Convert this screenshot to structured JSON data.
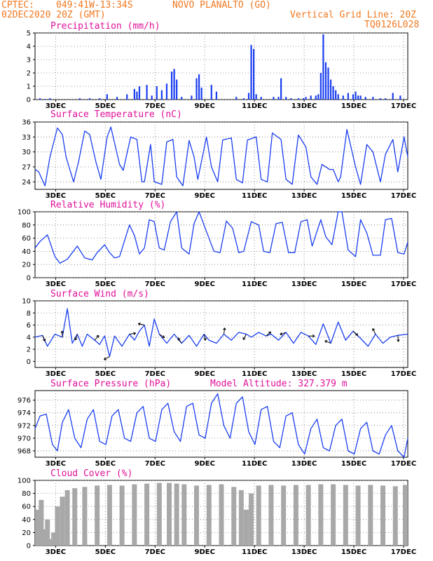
{
  "header": {
    "source": "CPTEC:",
    "location_coords": "049:41W-13:34S",
    "location_name": "NOVO PLANALTO (GO)",
    "run_date": "02DEC2020 20Z (GMT)",
    "grid_note": "Vertical Grid Line: 20Z",
    "model_code": "TQ0126L028"
  },
  "chart_data": [
    {
      "type": "bar",
      "title": "Precipitation (mm/h)",
      "x_tick_labels": [
        "3DEC",
        "5DEC",
        "7DEC",
        "9DEC",
        "11DEC",
        "13DEC",
        "15DEC",
        "17DEC"
      ],
      "x_range_days": [
        2.0,
        17.0
      ],
      "ylim": [
        0,
        5
      ],
      "y_ticks": [
        0,
        1,
        2,
        3,
        4,
        5
      ],
      "color": "#1a3ef0",
      "series": [
        {
          "x": [
            2.2,
            2.4,
            2.6,
            3.8,
            4.2,
            4.6,
            4.9,
            5.3,
            5.7,
            6.0,
            6.1,
            6.2,
            6.5,
            6.7,
            6.9,
            7.1,
            7.3,
            7.5,
            7.6,
            7.7,
            7.9,
            8.3,
            8.5,
            8.6,
            8.7,
            9.1,
            9.3,
            10.1,
            10.4,
            10.6,
            10.7,
            10.8,
            10.9,
            11.1,
            11.6,
            11.8,
            11.9,
            12.1,
            12.3,
            12.6,
            12.8,
            12.9,
            13.1,
            13.3,
            13.4,
            13.5,
            13.6,
            13.7,
            13.8,
            13.9,
            14.0,
            14.1,
            14.2,
            14.4,
            14.6,
            14.8,
            14.9,
            15.0,
            15.1,
            15.3,
            15.6,
            15.9,
            16.1,
            16.4,
            16.7
          ],
          "values": [
            0.1,
            0.05,
            0.1,
            0.1,
            0.1,
            0.1,
            0.4,
            0.2,
            0.4,
            0.8,
            0.6,
            1.0,
            1.1,
            0.3,
            1.0,
            0.7,
            1.2,
            2.1,
            2.3,
            1.5,
            0.2,
            0.3,
            1.6,
            1.9,
            0.9,
            1.1,
            0.6,
            0.2,
            0.1,
            0.5,
            4.1,
            3.8,
            0.4,
            0.2,
            0.2,
            0.2,
            1.6,
            0.2,
            0.1,
            0.1,
            0.1,
            0.2,
            0.3,
            0.3,
            0.4,
            2.0,
            4.9,
            2.8,
            2.4,
            1.5,
            1.0,
            0.7,
            0.4,
            0.3,
            0.5,
            0.4,
            0.6,
            0.3,
            0.3,
            0.2,
            0.2,
            0.1,
            0.1,
            0.5,
            0.3
          ]
        }
      ]
    },
    {
      "type": "line",
      "title": "Surface Temperature (nC)",
      "x_tick_labels": [
        "3DEC",
        "5DEC",
        "7DEC",
        "9DEC",
        "11DEC",
        "13DEC",
        "15DEC",
        "17DEC"
      ],
      "x_range_days": [
        2.0,
        17.0
      ],
      "ylim": [
        22.5,
        36
      ],
      "y_ticks": [
        24,
        27,
        30,
        33,
        36
      ],
      "color": "#1a3ef0",
      "series": [
        {
          "x": [
            2.0,
            2.15,
            2.4,
            2.6,
            2.9,
            3.1,
            3.25,
            3.55,
            3.75,
            4.0,
            4.2,
            4.45,
            4.65,
            4.9,
            5.05,
            5.4,
            5.55,
            5.85,
            6.1,
            6.3,
            6.4,
            6.65,
            6.8,
            7.1,
            7.3,
            7.55,
            7.7,
            7.95,
            8.2,
            8.4,
            8.55,
            8.9,
            9.1,
            9.35,
            9.55,
            9.9,
            10.1,
            10.35,
            10.55,
            10.9,
            11.1,
            11.35,
            11.55,
            11.9,
            12.1,
            12.35,
            12.6,
            12.9,
            13.1,
            13.35,
            13.55,
            13.85,
            14.0,
            14.2,
            14.3,
            14.55,
            14.9,
            15.1,
            15.35,
            15.6,
            15.9,
            16.1,
            16.4,
            16.6,
            16.85,
            17.0
          ],
          "values": [
            26.5,
            26,
            23.2,
            29,
            34.8,
            33.5,
            29,
            24,
            28,
            34.2,
            33.5,
            28,
            24.5,
            33,
            35,
            27.5,
            26.3,
            33,
            32.5,
            24,
            24,
            31.5,
            24,
            23.5,
            32,
            32.5,
            25,
            23.2,
            32.3,
            29,
            24.5,
            33,
            27,
            24,
            32.4,
            32.8,
            24.5,
            23.8,
            32.4,
            33,
            24.5,
            24,
            33.8,
            32.5,
            24.5,
            23.5,
            33.4,
            31,
            25,
            23.5,
            27.5,
            26.5,
            26.5,
            24,
            25,
            34.5,
            27,
            23.5,
            31.5,
            30,
            24,
            29.5,
            32.5,
            26,
            33,
            29
          ]
        }
      ]
    },
    {
      "type": "line",
      "title": "Relative Humidity (%)",
      "x_tick_labels": [
        "3DEC",
        "5DEC",
        "7DEC",
        "9DEC",
        "11DEC",
        "13DEC",
        "15DEC",
        "17DEC"
      ],
      "x_range_days": [
        2.0,
        17.0
      ],
      "ylim": [
        0,
        100
      ],
      "y_ticks": [
        0,
        20,
        40,
        60,
        80,
        100
      ],
      "color": "#1a3ef0",
      "series": [
        {
          "x": [
            2.0,
            2.2,
            2.5,
            2.8,
            3.0,
            3.3,
            3.5,
            3.7,
            4.0,
            4.3,
            4.5,
            4.8,
            5.0,
            5.2,
            5.4,
            5.8,
            6.0,
            6.2,
            6.4,
            6.6,
            6.8,
            7.0,
            7.2,
            7.45,
            7.7,
            7.9,
            8.2,
            8.4,
            8.6,
            8.9,
            9.2,
            9.45,
            9.7,
            9.95,
            10.2,
            10.4,
            10.7,
            11.0,
            11.2,
            11.45,
            11.7,
            11.95,
            12.2,
            12.45,
            12.7,
            12.95,
            13.15,
            13.5,
            13.7,
            13.95,
            14.2,
            14.35,
            14.6,
            14.9,
            15.1,
            15.35,
            15.6,
            15.9,
            16.1,
            16.35,
            16.6,
            16.85,
            17.0
          ],
          "values": [
            45,
            55,
            65,
            32,
            22,
            28,
            38,
            48,
            30,
            27,
            38,
            50,
            38,
            30,
            32,
            80,
            64,
            36,
            45,
            88,
            85,
            45,
            42,
            85,
            100,
            45,
            36,
            82,
            100,
            70,
            40,
            38,
            86,
            75,
            38,
            40,
            85,
            80,
            40,
            38,
            82,
            84,
            38,
            38,
            85,
            88,
            48,
            88,
            62,
            50,
            100,
            100,
            42,
            32,
            88,
            68,
            34,
            34,
            88,
            90,
            38,
            36,
            54
          ]
        }
      ]
    },
    {
      "type": "line",
      "title": "Surface Wind (m/s)",
      "x_tick_labels": [
        "3DEC",
        "5DEC",
        "7DEC",
        "9DEC",
        "11DEC",
        "13DEC",
        "15DEC",
        "17DEC"
      ],
      "x_range_days": [
        2.0,
        17.0
      ],
      "ylim": [
        -1,
        10
      ],
      "y_ticks": [
        0,
        2,
        4,
        6,
        8,
        10
      ],
      "color": "#1a3ef0",
      "series": [
        {
          "x": [
            2.0,
            2.3,
            2.5,
            2.8,
            3.1,
            3.3,
            3.5,
            3.7,
            3.9,
            4.1,
            4.4,
            4.6,
            4.8,
            5.0,
            5.2,
            5.5,
            5.8,
            6.0,
            6.2,
            6.4,
            6.6,
            6.8,
            7.0,
            7.3,
            7.6,
            7.9,
            8.2,
            8.5,
            8.8,
            9.0,
            9.3,
            9.6,
            9.9,
            10.2,
            10.5,
            10.7,
            11.0,
            11.3,
            11.5,
            11.8,
            12.1,
            12.4,
            12.7,
            13.0,
            13.3,
            13.6,
            13.9,
            14.2,
            14.5,
            14.8,
            15.1,
            15.4,
            15.7,
            16.0,
            16.3,
            16.6,
            17.0
          ],
          "values": [
            4,
            4.3,
            2.5,
            4.5,
            4,
            8.7,
            3,
            4.5,
            2.5,
            4.5,
            3.5,
            2.8,
            4.2,
            0.8,
            4.2,
            2.5,
            4.5,
            3.5,
            5,
            6,
            2.5,
            7,
            4.5,
            3,
            4.5,
            3,
            4.3,
            2.5,
            4.5,
            3.5,
            3,
            4.5,
            3.5,
            4.8,
            4.5,
            4,
            4.8,
            4.2,
            4.5,
            3.5,
            4.8,
            3,
            4.8,
            4.2,
            2.8,
            6.2,
            3,
            6.5,
            3.5,
            5,
            3.8,
            2.5,
            4.5,
            3,
            4,
            4.3,
            4.5
          ]
        }
      ],
      "arrows_visible": true
    },
    {
      "type": "line",
      "title": "Surface Pressure (hPa)",
      "annotation": "Model Altitude: 327.379 m",
      "x_tick_labels": [
        "3DEC",
        "5DEC",
        "7DEC",
        "9DEC",
        "11DEC",
        "13DEC",
        "15DEC",
        "17DEC"
      ],
      "x_range_days": [
        2.0,
        17.0
      ],
      "ylim": [
        967,
        977.5
      ],
      "y_ticks": [
        968,
        970,
        972,
        974,
        976
      ],
      "color": "#1a3ef0",
      "series": [
        {
          "x": [
            2.0,
            2.2,
            2.45,
            2.7,
            2.9,
            3.1,
            3.35,
            3.6,
            3.85,
            4.1,
            4.35,
            4.6,
            4.85,
            5.1,
            5.35,
            5.6,
            5.85,
            6.1,
            6.35,
            6.6,
            6.85,
            7.1,
            7.35,
            7.6,
            7.85,
            8.1,
            8.35,
            8.6,
            8.85,
            9.1,
            9.35,
            9.6,
            9.85,
            10.1,
            10.35,
            10.6,
            10.85,
            11.1,
            11.35,
            11.6,
            11.85,
            12.1,
            12.35,
            12.6,
            12.85,
            13.1,
            13.35,
            13.6,
            13.85,
            14.1,
            14.35,
            14.6,
            14.85,
            15.1,
            15.35,
            15.6,
            15.85,
            16.1,
            16.35,
            16.6,
            16.85,
            17.0
          ],
          "values": [
            971.5,
            973.5,
            973.8,
            969,
            968,
            972.5,
            974.5,
            970,
            968.5,
            973,
            974.5,
            969.5,
            969,
            973.5,
            974.5,
            970,
            969.5,
            974,
            975,
            970,
            969.5,
            974.5,
            975.5,
            971,
            969.5,
            975,
            975.5,
            970.5,
            970,
            975.5,
            977,
            972,
            970,
            975.5,
            976.5,
            971,
            969,
            974.5,
            975,
            969.5,
            968.5,
            973.5,
            974,
            969,
            967.5,
            971.5,
            973,
            968.5,
            968,
            972,
            973,
            968,
            967.5,
            971.5,
            972.5,
            968,
            967.5,
            970.5,
            972,
            968,
            967,
            970
          ]
        }
      ]
    },
    {
      "type": "bar",
      "title": "Cloud Cover (%)",
      "x_tick_labels": [
        "3DEC",
        "5DEC",
        "7DEC",
        "9DEC",
        "11DEC",
        "13DEC",
        "15DEC",
        "17DEC"
      ],
      "x_range_days": [
        2.0,
        17.0
      ],
      "ylim": [
        0,
        100
      ],
      "y_ticks": [
        0,
        20,
        40,
        60,
        80,
        100
      ],
      "color": "#a8a8a8",
      "series": [
        {
          "x": [
            2.1,
            2.25,
            2.4,
            2.5,
            2.6,
            2.75,
            2.9,
            3.1,
            3.3,
            3.6,
            4.0,
            4.5,
            5.0,
            5.5,
            6.0,
            6.5,
            7.0,
            7.4,
            7.5,
            7.7,
            8.0,
            8.5,
            9.0,
            9.5,
            10.0,
            10.3,
            10.5,
            10.7,
            11.0,
            11.5,
            12.0,
            12.5,
            13.0,
            13.5,
            14.0,
            14.5,
            15.0,
            15.5,
            16.0,
            16.5,
            16.9
          ],
          "values": [
            55,
            70,
            25,
            40,
            10,
            20,
            60,
            75,
            85,
            88,
            90,
            92,
            93,
            92,
            94,
            95,
            96,
            96,
            0,
            95,
            94,
            92,
            93,
            94,
            90,
            85,
            55,
            80,
            92,
            93,
            92,
            93,
            93,
            94,
            94,
            93,
            92,
            93,
            92,
            91,
            93
          ]
        }
      ]
    }
  ]
}
